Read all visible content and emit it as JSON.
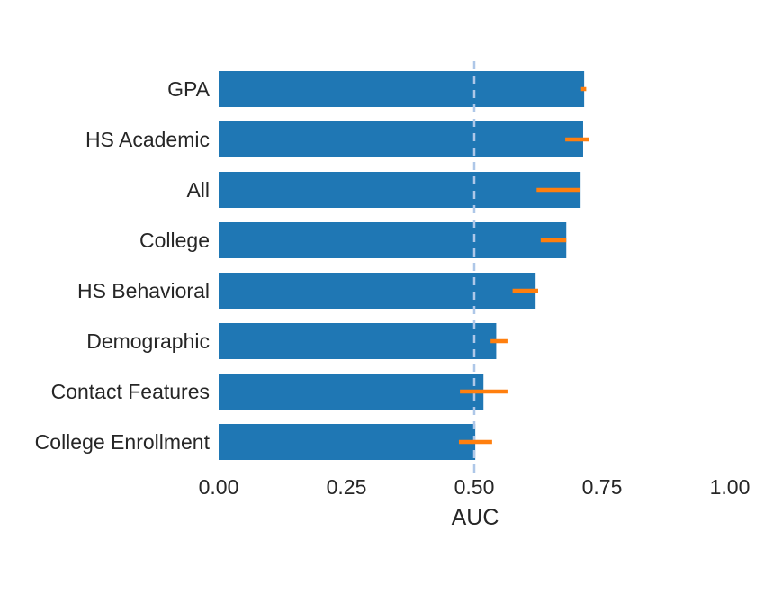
{
  "chart_data": {
    "type": "bar",
    "orientation": "horizontal",
    "categories": [
      "GPA",
      "HS Academic",
      "All",
      "College",
      "HS Behavioral",
      "Demographic",
      "Contact Features",
      "College Enrollment"
    ],
    "values": [
      0.715,
      0.713,
      0.708,
      0.68,
      0.62,
      0.543,
      0.518,
      0.502
    ],
    "error_low": [
      0.709,
      0.678,
      0.622,
      0.63,
      0.575,
      0.532,
      0.472,
      0.47
    ],
    "error_high": [
      0.719,
      0.724,
      0.707,
      0.68,
      0.625,
      0.565,
      0.565,
      0.535
    ],
    "xlabel": "AUC",
    "ylabel": "",
    "title": "",
    "xlim": [
      0,
      1
    ],
    "xticks": [
      "0.00",
      "0.25",
      "0.50",
      "0.75",
      "1.00"
    ],
    "reference_line": 0.5,
    "grid": false,
    "colors": {
      "bar": "#1f77b4",
      "error": "#ff7f0e",
      "reference": "#aec7e8",
      "text": "#262626"
    }
  }
}
